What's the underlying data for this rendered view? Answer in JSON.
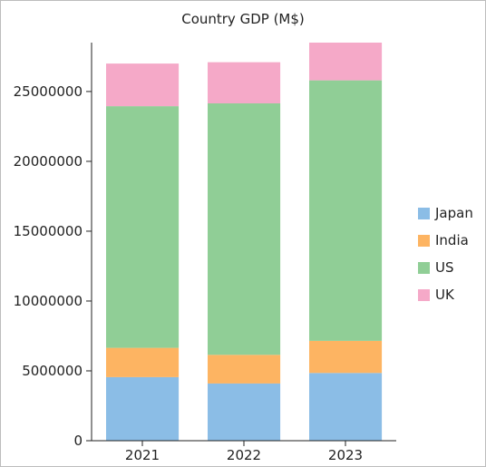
{
  "chart_data": {
    "type": "bar",
    "stacked": true,
    "title": "Country GDP (M$)",
    "categories": [
      "2021",
      "2022",
      "2023"
    ],
    "series": [
      {
        "name": "Japan",
        "color": "#8bbde6",
        "values": [
          4550000,
          4100000,
          4850000
        ]
      },
      {
        "name": "India",
        "color": "#fdb462",
        "values": [
          2100000,
          2050000,
          2300000
        ]
      },
      {
        "name": "US",
        "color": "#90ce96",
        "values": [
          17300000,
          18000000,
          18650000
        ]
      },
      {
        "name": "UK",
        "color": "#f5a9c8",
        "values": [
          3050000,
          2950000,
          3700000
        ]
      }
    ],
    "ylim": [
      0,
      28500000
    ],
    "yticks": [
      0,
      5000000,
      10000000,
      15000000,
      20000000,
      25000000
    ],
    "ytick_labels": [
      "0",
      "5000000",
      "10000000",
      "15000000",
      "20000000",
      "25000000"
    ],
    "legend_position": "right",
    "grid": false
  }
}
